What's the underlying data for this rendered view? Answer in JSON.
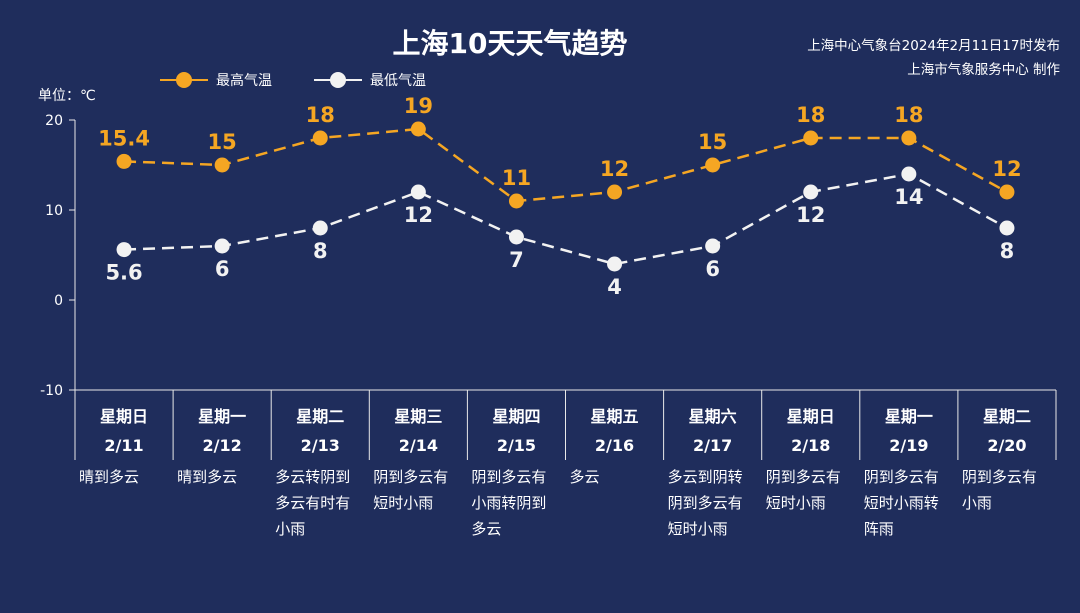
{
  "title": "上海10天天气趋势",
  "source": {
    "line1": "上海中心气象台2024年2月11日17时发布",
    "line2": "上海市气象服务中心 制作"
  },
  "unit_label": "单位：℃",
  "colors": {
    "high": "#f5a623",
    "low": "#f2f2f2",
    "background": "#1f2d5c",
    "axis": "#e8e8e8"
  },
  "chart_data": {
    "type": "line",
    "ylim": [
      -10,
      20
    ],
    "yticks": [
      -10,
      0,
      10,
      20
    ],
    "grid": false,
    "legend_position": "top-left",
    "series": [
      {
        "name": "最高气温",
        "values": [
          15.4,
          15,
          18,
          19,
          11,
          12,
          15,
          18,
          18,
          12
        ],
        "labels": [
          "15.4",
          "15",
          "18",
          "19",
          "11",
          "12",
          "15",
          "18",
          "18",
          "12"
        ]
      },
      {
        "name": "最低气温",
        "values": [
          5.6,
          6,
          8,
          12,
          7,
          4,
          6,
          12,
          14,
          8
        ],
        "labels": [
          "5.6",
          "6",
          "8",
          "12",
          "7",
          "4",
          "6",
          "12",
          "14",
          "8"
        ]
      }
    ],
    "days": [
      {
        "week": "星期日",
        "date": "2/11",
        "weather": [
          "晴到多云"
        ]
      },
      {
        "week": "星期一",
        "date": "2/12",
        "weather": [
          "晴到多云"
        ]
      },
      {
        "week": "星期二",
        "date": "2/13",
        "weather": [
          "多云转阴到",
          "多云有时有",
          "小雨"
        ]
      },
      {
        "week": "星期三",
        "date": "2/14",
        "weather": [
          "阴到多云有",
          "短时小雨"
        ]
      },
      {
        "week": "星期四",
        "date": "2/15",
        "weather": [
          "阴到多云有",
          "小雨转阴到",
          "多云"
        ]
      },
      {
        "week": "星期五",
        "date": "2/16",
        "weather": [
          "多云"
        ]
      },
      {
        "week": "星期六",
        "date": "2/17",
        "weather": [
          "多云到阴转",
          "阴到多云有",
          "短时小雨"
        ]
      },
      {
        "week": "星期日",
        "date": "2/18",
        "weather": [
          "阴到多云有",
          "短时小雨"
        ]
      },
      {
        "week": "星期一",
        "date": "2/19",
        "weather": [
          "阴到多云有",
          "短时小雨转",
          "阵雨"
        ]
      },
      {
        "week": "星期二",
        "date": "2/20",
        "weather": [
          "阴到多云有",
          "小雨"
        ]
      }
    ]
  }
}
